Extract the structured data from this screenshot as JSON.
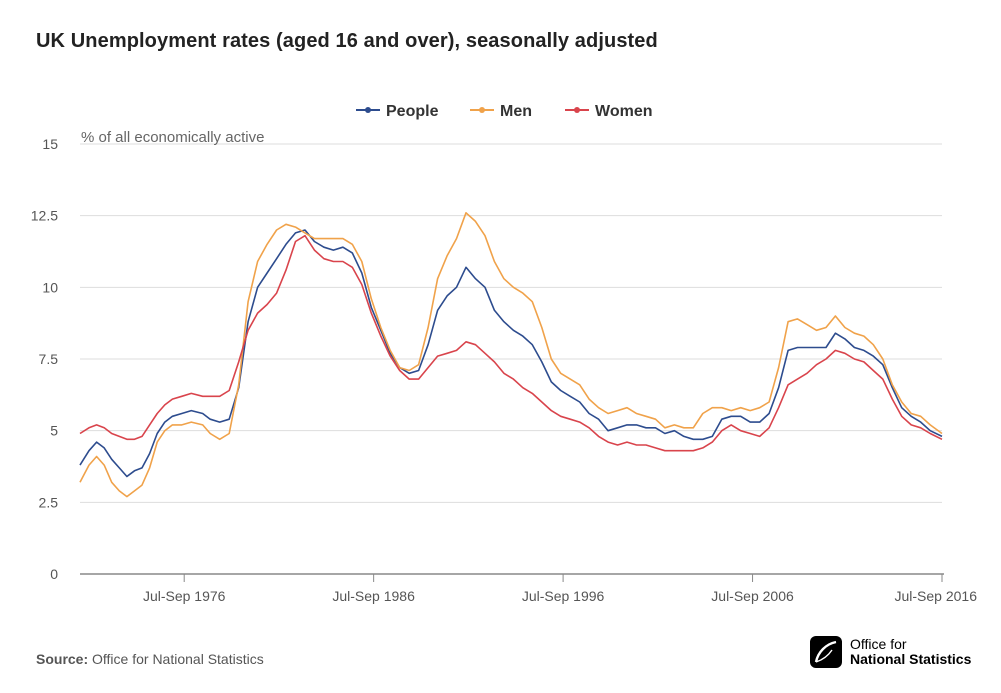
{
  "title": "UK Unemployment rates (aged 16 and over), seasonally adjusted",
  "source": {
    "label": "Source:",
    "text": "Office for National Statistics"
  },
  "logo": {
    "line1": "Office for",
    "line2": "National Statistics"
  },
  "colors": {
    "people": "#2d4c8e",
    "men": "#f0a24a",
    "women": "#d9444c",
    "grid": "#dddddd",
    "axis": "#888888",
    "tick_text": "#555555"
  },
  "chart_data": {
    "type": "line",
    "ylabel": "% of all economically active",
    "ylim": [
      0,
      15
    ],
    "yticks": [
      0,
      2.5,
      5,
      7.5,
      10,
      12.5,
      15
    ],
    "ytick_labels": [
      "0",
      "2.5",
      "5",
      "7.5",
      "10",
      "12.5",
      "15"
    ],
    "xlim": [
      1971.125,
      2016.625
    ],
    "xticks": [
      1976.625,
      1986.625,
      1996.625,
      2006.625,
      2016.625
    ],
    "xtick_labels": [
      "Jul-Sep 1976",
      "Jul-Sep 1986",
      "Jul-Sep 1996",
      "Jul-Sep 2006",
      "Jul-Sep 2016"
    ],
    "grid": true,
    "legend": "top-center",
    "series": [
      {
        "name": "People",
        "color": "#2d4c8e",
        "x": [
          1971.125,
          1971.6,
          1972.0,
          1972.4,
          1972.8,
          1973.2,
          1973.6,
          1974.0,
          1974.4,
          1974.8,
          1975.2,
          1975.6,
          1976.0,
          1976.5,
          1977.0,
          1977.6,
          1978.0,
          1978.5,
          1979.0,
          1979.5,
          1980.0,
          1980.5,
          1981.0,
          1981.5,
          1982.0,
          1982.5,
          1983.0,
          1983.5,
          1984.0,
          1984.5,
          1985.0,
          1985.5,
          1986.0,
          1986.5,
          1987.0,
          1987.5,
          1988.0,
          1988.5,
          1989.0,
          1989.5,
          1990.0,
          1990.5,
          1991.0,
          1991.5,
          1992.0,
          1992.5,
          1993.0,
          1993.5,
          1994.0,
          1994.5,
          1995.0,
          1995.5,
          1996.0,
          1996.5,
          1997.0,
          1997.5,
          1998.0,
          1998.5,
          1999.0,
          1999.5,
          2000.0,
          2000.5,
          2001.0,
          2001.5,
          2002.0,
          2002.5,
          2003.0,
          2003.5,
          2004.0,
          2004.5,
          2005.0,
          2005.5,
          2006.0,
          2006.5,
          2007.0,
          2007.5,
          2008.0,
          2008.5,
          2009.0,
          2009.5,
          2010.0,
          2010.5,
          2011.0,
          2011.5,
          2012.0,
          2012.5,
          2013.0,
          2013.5,
          2014.0,
          2014.5,
          2015.0,
          2015.5,
          2016.0,
          2016.625
        ],
        "y": [
          3.8,
          4.3,
          4.6,
          4.4,
          4.0,
          3.7,
          3.4,
          3.6,
          3.7,
          4.2,
          4.9,
          5.3,
          5.5,
          5.6,
          5.7,
          5.6,
          5.4,
          5.3,
          5.4,
          6.5,
          8.8,
          10.0,
          10.5,
          11.0,
          11.5,
          11.9,
          12.0,
          11.6,
          11.4,
          11.3,
          11.4,
          11.2,
          10.5,
          9.3,
          8.5,
          7.7,
          7.2,
          7.0,
          7.1,
          8.0,
          9.2,
          9.7,
          10.0,
          10.7,
          10.3,
          10.0,
          9.2,
          8.8,
          8.5,
          8.3,
          8.0,
          7.4,
          6.7,
          6.4,
          6.2,
          6.0,
          5.6,
          5.4,
          5.0,
          5.1,
          5.2,
          5.2,
          5.1,
          5.1,
          4.9,
          5.0,
          4.8,
          4.7,
          4.7,
          4.8,
          5.4,
          5.5,
          5.5,
          5.3,
          5.3,
          5.6,
          6.5,
          7.8,
          7.9,
          7.9,
          7.9,
          7.9,
          8.4,
          8.2,
          7.9,
          7.8,
          7.6,
          7.3,
          6.5,
          5.8,
          5.5,
          5.3,
          5.0,
          4.8
        ]
      },
      {
        "name": "Men",
        "color": "#f0a24a",
        "x": [
          1971.125,
          1971.6,
          1972.0,
          1972.4,
          1972.8,
          1973.2,
          1973.6,
          1974.0,
          1974.4,
          1974.8,
          1975.2,
          1975.6,
          1976.0,
          1976.5,
          1977.0,
          1977.6,
          1978.0,
          1978.5,
          1979.0,
          1979.5,
          1980.0,
          1980.5,
          1981.0,
          1981.5,
          1982.0,
          1982.5,
          1983.0,
          1983.5,
          1984.0,
          1984.5,
          1985.0,
          1985.5,
          1986.0,
          1986.5,
          1987.0,
          1987.5,
          1988.0,
          1988.5,
          1989.0,
          1989.5,
          1990.0,
          1990.5,
          1991.0,
          1991.5,
          1992.0,
          1992.5,
          1993.0,
          1993.5,
          1994.0,
          1994.5,
          1995.0,
          1995.5,
          1996.0,
          1996.5,
          1997.0,
          1997.5,
          1998.0,
          1998.5,
          1999.0,
          1999.5,
          2000.0,
          2000.5,
          2001.0,
          2001.5,
          2002.0,
          2002.5,
          2003.0,
          2003.5,
          2004.0,
          2004.5,
          2005.0,
          2005.5,
          2006.0,
          2006.5,
          2007.0,
          2007.5,
          2008.0,
          2008.5,
          2009.0,
          2009.5,
          2010.0,
          2010.5,
          2011.0,
          2011.5,
          2012.0,
          2012.5,
          2013.0,
          2013.5,
          2014.0,
          2014.5,
          2015.0,
          2015.5,
          2016.0,
          2016.625
        ],
        "y": [
          3.2,
          3.8,
          4.1,
          3.8,
          3.2,
          2.9,
          2.7,
          2.9,
          3.1,
          3.7,
          4.6,
          5.0,
          5.2,
          5.2,
          5.3,
          5.2,
          4.9,
          4.7,
          4.9,
          6.6,
          9.5,
          10.9,
          11.5,
          12.0,
          12.2,
          12.1,
          11.9,
          11.7,
          11.7,
          11.7,
          11.7,
          11.5,
          10.9,
          9.6,
          8.6,
          7.8,
          7.2,
          7.1,
          7.3,
          8.6,
          10.3,
          11.1,
          11.7,
          12.6,
          12.3,
          11.8,
          10.9,
          10.3,
          10.0,
          9.8,
          9.5,
          8.6,
          7.5,
          7.0,
          6.8,
          6.6,
          6.1,
          5.8,
          5.6,
          5.7,
          5.8,
          5.6,
          5.5,
          5.4,
          5.1,
          5.2,
          5.1,
          5.1,
          5.6,
          5.8,
          5.8,
          5.7,
          5.8,
          5.7,
          5.8,
          6.0,
          7.2,
          8.8,
          8.9,
          8.7,
          8.5,
          8.6,
          9.0,
          8.6,
          8.4,
          8.3,
          8.0,
          7.5,
          6.6,
          6.0,
          5.6,
          5.5,
          5.2,
          4.9
        ]
      },
      {
        "name": "Women",
        "color": "#d9444c",
        "x": [
          1971.125,
          1971.6,
          1972.0,
          1972.4,
          1972.8,
          1973.2,
          1973.6,
          1974.0,
          1974.4,
          1974.8,
          1975.2,
          1975.6,
          1976.0,
          1976.5,
          1977.0,
          1977.6,
          1978.0,
          1978.5,
          1979.0,
          1979.5,
          1980.0,
          1980.5,
          1981.0,
          1981.5,
          1982.0,
          1982.5,
          1983.0,
          1983.5,
          1984.0,
          1984.5,
          1985.0,
          1985.5,
          1986.0,
          1986.5,
          1987.0,
          1987.5,
          1988.0,
          1988.5,
          1989.0,
          1989.5,
          1990.0,
          1990.5,
          1991.0,
          1991.5,
          1992.0,
          1992.5,
          1993.0,
          1993.5,
          1994.0,
          1994.5,
          1995.0,
          1995.5,
          1996.0,
          1996.5,
          1997.0,
          1997.5,
          1998.0,
          1998.5,
          1999.0,
          1999.5,
          2000.0,
          2000.5,
          2001.0,
          2001.5,
          2002.0,
          2002.5,
          2003.0,
          2003.5,
          2004.0,
          2004.5,
          2005.0,
          2005.5,
          2006.0,
          2006.5,
          2007.0,
          2007.5,
          2008.0,
          2008.5,
          2009.0,
          2009.5,
          2010.0,
          2010.5,
          2011.0,
          2011.5,
          2012.0,
          2012.5,
          2013.0,
          2013.5,
          2014.0,
          2014.5,
          2015.0,
          2015.5,
          2016.0,
          2016.625
        ],
        "y": [
          4.9,
          5.1,
          5.2,
          5.1,
          4.9,
          4.8,
          4.7,
          4.7,
          4.8,
          5.2,
          5.6,
          5.9,
          6.1,
          6.2,
          6.3,
          6.2,
          6.2,
          6.2,
          6.4,
          7.4,
          8.5,
          9.1,
          9.4,
          9.8,
          10.6,
          11.6,
          11.8,
          11.3,
          11.0,
          10.9,
          10.9,
          10.7,
          10.1,
          9.1,
          8.3,
          7.6,
          7.1,
          6.8,
          6.8,
          7.2,
          7.6,
          7.7,
          7.8,
          8.1,
          8.0,
          7.7,
          7.4,
          7.0,
          6.8,
          6.5,
          6.3,
          6.0,
          5.7,
          5.5,
          5.4,
          5.3,
          5.1,
          4.8,
          4.6,
          4.5,
          4.6,
          4.5,
          4.5,
          4.4,
          4.3,
          4.3,
          4.3,
          4.3,
          4.4,
          4.6,
          5.0,
          5.2,
          5.0,
          4.9,
          4.8,
          5.1,
          5.8,
          6.6,
          6.8,
          7.0,
          7.3,
          7.5,
          7.8,
          7.7,
          7.5,
          7.4,
          7.1,
          6.8,
          6.1,
          5.5,
          5.2,
          5.1,
          4.9,
          4.7
        ]
      }
    ]
  }
}
